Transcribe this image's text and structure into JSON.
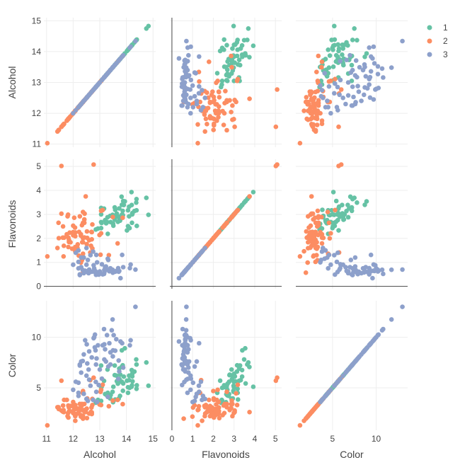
{
  "chart_data": {
    "type": "scatter",
    "variables": [
      "Alcohol",
      "Flavonoids",
      "Color"
    ],
    "axes": {
      "Alcohol": {
        "range": [
          10.9,
          15.1
        ],
        "ticks": [
          11,
          12,
          13,
          14,
          15
        ]
      },
      "Flavonoids": {
        "range": [
          -0.1,
          5.3
        ],
        "ticks": [
          0,
          1,
          2,
          3,
          4,
          5
        ]
      },
      "Color": {
        "range": [
          0.8,
          13.6
        ],
        "ticks": [
          5,
          10
        ]
      }
    },
    "grid": true,
    "legend_position": "top-right",
    "colors": {
      "1": "#66c2a5",
      "2": "#fc8d62",
      "3": "#8da0cb"
    },
    "series": [
      {
        "name": "1",
        "points": [
          [
            14.23,
            3.06,
            5.64
          ],
          [
            13.2,
            2.76,
            4.38
          ],
          [
            13.16,
            3.24,
            5.68
          ],
          [
            14.37,
            3.49,
            7.8
          ],
          [
            13.24,
            2.69,
            4.32
          ],
          [
            14.2,
            3.39,
            6.75
          ],
          [
            14.39,
            2.52,
            5.25
          ],
          [
            14.06,
            2.51,
            5.05
          ],
          [
            14.83,
            2.98,
            5.2
          ],
          [
            13.86,
            3.15,
            7.22
          ],
          [
            14.1,
            3.32,
            5.75
          ],
          [
            14.12,
            2.43,
            5.0
          ],
          [
            13.75,
            2.76,
            5.6
          ],
          [
            14.75,
            3.69,
            7.5
          ],
          [
            14.38,
            3.64,
            7.3
          ],
          [
            13.63,
            2.91,
            6.2
          ],
          [
            14.3,
            3.14,
            6.6
          ],
          [
            13.83,
            3.4,
            8.7
          ],
          [
            14.19,
            3.93,
            5.1
          ],
          [
            13.64,
            3.03,
            5.65
          ],
          [
            14.06,
            3.17,
            4.5
          ],
          [
            12.93,
            2.41,
            3.8
          ],
          [
            13.71,
            2.88,
            3.93
          ],
          [
            12.85,
            2.37,
            3.52
          ],
          [
            13.5,
            2.61,
            3.58
          ],
          [
            13.05,
            2.68,
            4.8
          ],
          [
            13.39,
            2.94,
            3.95
          ],
          [
            13.3,
            2.19,
            4.5
          ],
          [
            13.87,
            2.97,
            4.7
          ],
          [
            14.02,
            2.33,
            5.7
          ],
          [
            13.73,
            3.25,
            6.9
          ],
          [
            13.58,
            3.19,
            3.84
          ],
          [
            13.68,
            2.69,
            5.4
          ],
          [
            13.76,
            2.74,
            4.2
          ],
          [
            13.51,
            2.53,
            5.1
          ],
          [
            13.48,
            2.98,
            4.6
          ],
          [
            13.28,
            2.68,
            4.25
          ],
          [
            13.05,
            2.43,
            3.7
          ],
          [
            13.07,
            2.64,
            5.1
          ],
          [
            14.22,
            3.04,
            6.13
          ],
          [
            13.56,
            3.29,
            7.2
          ],
          [
            13.41,
            2.68,
            4.28
          ],
          [
            13.88,
            3.56,
            5.43
          ],
          [
            13.24,
            2.63,
            4.36
          ],
          [
            13.05,
            3.0,
            5.04
          ],
          [
            14.21,
            2.65,
            5.24
          ],
          [
            14.38,
            3.17,
            4.9
          ],
          [
            13.9,
            3.39,
            6.1
          ],
          [
            14.1,
            2.92,
            6.2
          ],
          [
            13.94,
            3.54,
            8.9
          ],
          [
            13.05,
            3.27,
            7.2
          ],
          [
            13.83,
            2.99,
            5.6
          ],
          [
            13.82,
            3.74,
            7.05
          ],
          [
            13.77,
            2.79,
            6.3
          ],
          [
            13.74,
            2.9,
            5.85
          ],
          [
            13.56,
            2.78,
            6.25
          ],
          [
            14.22,
            3.0,
            6.38
          ],
          [
            13.29,
            2.88,
            6.8
          ]
        ]
      },
      {
        "name": "2",
        "points": [
          [
            12.37,
            0.57,
            1.95
          ],
          [
            12.33,
            1.09,
            3.27
          ],
          [
            12.64,
            1.41,
            5.75
          ],
          [
            13.67,
            1.79,
            3.8
          ],
          [
            12.37,
            3.1,
            4.45
          ],
          [
            12.17,
            1.75,
            2.95
          ],
          [
            12.37,
            2.65,
            4.6
          ],
          [
            13.11,
            3.18,
            5.3
          ],
          [
            12.37,
            2.0,
            4.68
          ],
          [
            13.34,
            1.3,
            3.17
          ],
          [
            12.21,
            1.28,
            2.85
          ],
          [
            12.29,
            1.02,
            3.05
          ],
          [
            13.86,
            2.86,
            3.38
          ],
          [
            13.49,
            2.89,
            3.74
          ],
          [
            12.99,
            2.14,
            3.35
          ],
          [
            11.96,
            1.57,
            3.21
          ],
          [
            11.66,
            2.03,
            3.8
          ],
          [
            13.03,
            1.32,
            4.6
          ],
          [
            11.84,
            1.85,
            2.65
          ],
          [
            12.33,
            2.55,
            3.4
          ],
          [
            12.7,
            2.26,
            2.57
          ],
          [
            12.0,
            2.53,
            2.5
          ],
          [
            12.72,
            1.58,
            3.9
          ],
          [
            12.08,
            1.59,
            2.2
          ],
          [
            13.05,
            2.21,
            4.8
          ],
          [
            11.84,
            1.94,
            3.05
          ],
          [
            12.67,
            1.69,
            2.62
          ],
          [
            12.16,
            1.61,
            2.45
          ],
          [
            11.65,
            1.69,
            2.6
          ],
          [
            11.64,
            1.25,
            2.8
          ],
          [
            12.08,
            1.46,
            1.74
          ],
          [
            12.08,
            2.25,
            2.4
          ],
          [
            12.0,
            2.26,
            3.6
          ],
          [
            12.69,
            2.27,
            3.05
          ],
          [
            12.29,
            0.99,
            2.15
          ],
          [
            11.62,
            2.5,
            3.25
          ],
          [
            12.47,
            3.75,
            2.6
          ],
          [
            11.81,
            2.99,
            2.5
          ],
          [
            12.29,
            2.17,
            2.9
          ],
          [
            12.37,
            1.36,
            4.5
          ],
          [
            12.29,
            2.11,
            2.3
          ],
          [
            12.08,
            1.64,
            3.3
          ],
          [
            12.6,
            1.92,
            2.45
          ],
          [
            12.34,
            1.84,
            2.8
          ],
          [
            11.82,
            2.03,
            2.06
          ],
          [
            12.51,
            1.76,
            2.94
          ],
          [
            12.42,
            2.04,
            2.7
          ],
          [
            12.25,
            2.92,
            3.4
          ],
          [
            12.72,
            2.58,
            3.3
          ],
          [
            12.22,
            2.27,
            2.7
          ],
          [
            11.61,
            2.03,
            2.65
          ],
          [
            11.46,
            2.01,
            2.9
          ],
          [
            12.52,
            2.29,
            2.0
          ],
          [
            11.76,
            2.17,
            3.8
          ],
          [
            11.41,
            1.6,
            3.08
          ],
          [
            12.08,
            2.09,
            2.9
          ],
          [
            11.03,
            1.25,
            1.28
          ],
          [
            11.82,
            1.64,
            3.25
          ],
          [
            12.42,
            2.79,
            2.8
          ],
          [
            12.77,
            5.08,
            6.0
          ],
          [
            12.0,
            2.13,
            2.7
          ],
          [
            11.45,
            2.65,
            3.08
          ],
          [
            11.56,
            3.03,
            2.75
          ],
          [
            12.42,
            2.65,
            3.4
          ],
          [
            13.05,
            3.15,
            3.3
          ],
          [
            11.87,
            2.24,
            2.7
          ],
          [
            12.07,
            2.45,
            2.3
          ],
          [
            12.43,
            3.03,
            2.6
          ],
          [
            11.79,
            2.92,
            2.2
          ],
          [
            12.37,
            1.84,
            2.2
          ],
          [
            12.04,
            2.86,
            3.0
          ],
          [
            11.56,
            5.02,
            5.7
          ],
          [
            12.7,
            1.96,
            2.4
          ],
          [
            11.9,
            1.84,
            3.2
          ],
          [
            12.53,
            2.02,
            3.95
          ]
        ]
      },
      {
        "name": "3",
        "points": [
          [
            12.86,
            0.48,
            7.3
          ],
          [
            12.88,
            0.51,
            7.9
          ],
          [
            12.81,
            0.6,
            9.0
          ],
          [
            12.7,
            0.61,
            8.0
          ],
          [
            12.51,
            0.63,
            9.3
          ],
          [
            12.6,
            0.58,
            8.6
          ],
          [
            12.25,
            0.5,
            7.2
          ],
          [
            12.53,
            0.6,
            7.4
          ],
          [
            13.49,
            0.57,
            8.1
          ],
          [
            12.84,
            0.63,
            8.7
          ],
          [
            12.93,
            0.58,
            9.2
          ],
          [
            13.36,
            0.63,
            9.4
          ],
          [
            13.52,
            0.62,
            10.2
          ],
          [
            13.62,
            0.64,
            9.8
          ],
          [
            12.25,
            0.47,
            7.3
          ],
          [
            13.16,
            0.52,
            10.8
          ],
          [
            13.88,
            0.8,
            7.0
          ],
          [
            12.87,
            1.31,
            4.6
          ],
          [
            13.32,
            1.1,
            7.1
          ],
          [
            13.08,
            0.92,
            5.9
          ],
          [
            13.5,
            0.6,
            8.7
          ],
          [
            12.79,
            0.75,
            10.0
          ],
          [
            13.11,
            0.5,
            9.2
          ],
          [
            13.23,
            0.83,
            7.6
          ],
          [
            12.58,
            0.55,
            6.8
          ],
          [
            13.17,
            0.58,
            7.8
          ],
          [
            13.84,
            1.31,
            9.4
          ],
          [
            12.45,
            0.65,
            9.7
          ],
          [
            14.34,
            0.7,
            13.0
          ],
          [
            13.48,
            0.69,
            11.75
          ],
          [
            12.36,
            0.68,
            7.65
          ],
          [
            13.69,
            0.76,
            5.88
          ],
          [
            12.85,
            0.6,
            5.58
          ],
          [
            12.96,
            0.49,
            5.28
          ],
          [
            13.78,
            0.34,
            9.58
          ],
          [
            13.73,
            0.64,
            6.62
          ],
          [
            13.45,
            0.69,
            10.68
          ],
          [
            12.82,
            0.64,
            10.26
          ],
          [
            13.58,
            0.61,
            8.66
          ],
          [
            13.4,
            0.75,
            8.5
          ],
          [
            12.2,
            1.02,
            5.5
          ],
          [
            12.77,
            0.88,
            9.9
          ],
          [
            14.16,
            0.91,
            9.7
          ],
          [
            13.71,
            0.61,
            7.7
          ],
          [
            13.4,
            0.75,
            7.3
          ],
          [
            13.27,
            0.69,
            10.2
          ],
          [
            13.17,
            0.68,
            9.3
          ],
          [
            14.13,
            0.76,
            9.2
          ],
          [
            12.4,
            1.2,
            4.4
          ],
          [
            12.65,
            1.3,
            5.2
          ],
          [
            12.5,
            1.6,
            3.9
          ],
          [
            12.3,
            0.8,
            6.5
          ],
          [
            12.0,
            0.9,
            4.8
          ],
          [
            12.1,
            1.4,
            5.6
          ],
          [
            12.9,
            1.0,
            3.6
          ],
          [
            12.6,
            0.7,
            5.8
          ],
          [
            12.4,
            0.55,
            8.3
          ],
          [
            12.2,
            1.5,
            4.2
          ],
          [
            12.5,
            0.9,
            6.2
          ],
          [
            12.3,
            1.2,
            7.6
          ],
          [
            13.2,
            0.8,
            8.8
          ],
          [
            12.75,
            1.45,
            3.8
          ],
          [
            13.3,
            1.15,
            4.1
          ],
          [
            12.2,
            0.75,
            4.5
          ],
          [
            12.55,
            1.1,
            3.7
          ],
          [
            13.0,
            0.62,
            6.8
          ]
        ]
      }
    ]
  }
}
